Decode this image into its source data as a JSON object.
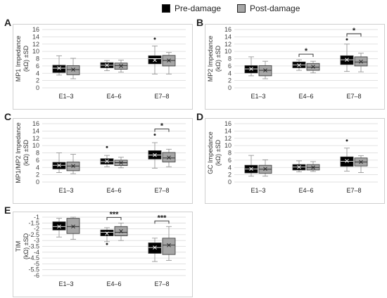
{
  "legend": {
    "items": [
      {
        "label": "Pre-damage",
        "color": "#000000"
      },
      {
        "label": "Post-damage",
        "color": "#a6a6a6"
      }
    ]
  },
  "chart_data": [
    {
      "panel": "A",
      "type": "box",
      "ylabel": "MP1 Impedance (kΩ) ±SD",
      "ylim": [
        0,
        16
      ],
      "yticks": [
        0,
        2,
        4,
        6,
        8,
        10,
        12,
        14,
        16
      ],
      "categories": [
        "E1–3",
        "E4–6",
        "E7–8"
      ],
      "series": [
        {
          "name": "Pre-damage",
          "boxes": [
            {
              "min": 3.5,
              "q1": 4.2,
              "median": 5.4,
              "q3": 6.2,
              "max": 8.8,
              "mean": 5.4
            },
            {
              "min": 4.7,
              "q1": 5.5,
              "median": 6.2,
              "q3": 6.9,
              "max": 7.5,
              "mean": 6.2
            },
            {
              "min": 3.8,
              "q1": 6.6,
              "median": 8.0,
              "q3": 8.8,
              "max": 11.5,
              "mean": 7.6
            }
          ]
        },
        {
          "name": "Post-damage",
          "boxes": [
            {
              "min": 2.5,
              "q1": 3.6,
              "median": 5.0,
              "q3": 6.1,
              "max": 8.1,
              "mean": 5.0
            },
            {
              "min": 4.3,
              "q1": 5.1,
              "median": 6.1,
              "q3": 6.8,
              "max": 7.6,
              "mean": 6.0
            },
            {
              "min": 3.8,
              "q1": 6.0,
              "median": 7.5,
              "q3": 8.9,
              "max": 9.7,
              "mean": 7.5
            }
          ]
        }
      ],
      "outliers": [
        {
          "series": "Pre-damage",
          "category": "E7–8",
          "value": 13.5
        }
      ],
      "significance": []
    },
    {
      "panel": "B",
      "type": "box",
      "ylabel": "MP2 Impedance (kΩ) ±SD",
      "ylim": [
        0,
        16
      ],
      "yticks": [
        0,
        2,
        4,
        6,
        8,
        10,
        12,
        14,
        16
      ],
      "categories": [
        "E1–3",
        "E4–6",
        "E7–8"
      ],
      "series": [
        {
          "name": "Pre-damage",
          "boxes": [
            {
              "min": 3.3,
              "q1": 4.1,
              "median": 5.2,
              "q3": 6.1,
              "max": 8.5,
              "mean": 5.2
            },
            {
              "min": 4.8,
              "q1": 5.5,
              "median": 6.3,
              "q3": 7.1,
              "max": 7.7,
              "mean": 6.2
            },
            {
              "min": 4.5,
              "q1": 6.4,
              "median": 7.7,
              "q3": 8.8,
              "max": 12.0,
              "mean": 7.7
            }
          ]
        },
        {
          "name": "Post-damage",
          "boxes": [
            {
              "min": 2.5,
              "q1": 3.3,
              "median": 4.8,
              "q3": 6.1,
              "max": 7.3,
              "mean": 4.8
            },
            {
              "min": 4.1,
              "q1": 4.8,
              "median": 5.7,
              "q3": 6.7,
              "max": 7.3,
              "mean": 5.8
            },
            {
              "min": 4.4,
              "q1": 6.0,
              "median": 7.1,
              "q3": 8.5,
              "max": 9.5,
              "mean": 7.2
            }
          ]
        }
      ],
      "outliers": [
        {
          "series": "Pre-damage",
          "category": "E7–8",
          "value": 13.3
        }
      ],
      "significance": [
        {
          "category": "E4–6",
          "label": "*"
        },
        {
          "category": "E7–8",
          "label": "*"
        }
      ]
    },
    {
      "panel": "C",
      "type": "box",
      "ylabel": "MP1/MP2 Impedance (kΩ) ±SD",
      "ylim": [
        0,
        16
      ],
      "yticks": [
        0,
        2,
        4,
        6,
        8,
        10,
        12,
        14,
        16
      ],
      "categories": [
        "E1–3",
        "E4–6",
        "E7–8"
      ],
      "series": [
        {
          "name": "Pre-damage",
          "boxes": [
            {
              "min": 2.6,
              "q1": 3.6,
              "median": 4.6,
              "q3": 5.4,
              "max": 8.0,
              "mean": 4.6
            },
            {
              "min": 4.2,
              "q1": 4.9,
              "median": 5.6,
              "q3": 6.4,
              "max": 7.3,
              "mean": 5.7
            },
            {
              "min": 3.8,
              "q1": 6.3,
              "median": 7.4,
              "q3": 8.6,
              "max": 10.8,
              "mean": 7.4
            }
          ]
        },
        {
          "name": "Post-damage",
          "boxes": [
            {
              "min": 2.3,
              "q1": 3.1,
              "median": 4.4,
              "q3": 5.5,
              "max": 7.6,
              "mean": 4.4
            },
            {
              "min": 3.9,
              "q1": 4.5,
              "median": 5.3,
              "q3": 6.0,
              "max": 6.8,
              "mean": 5.3
            },
            {
              "min": 4.2,
              "q1": 5.5,
              "median": 6.6,
              "q3": 8.1,
              "max": 9.0,
              "mean": 6.7
            }
          ]
        }
      ],
      "outliers": [
        {
          "series": "Pre-damage",
          "category": "E4–6",
          "value": 9.6
        },
        {
          "series": "Pre-damage",
          "category": "E7–8",
          "value": 13.0
        }
      ],
      "significance": [
        {
          "category": "E7–8",
          "label": "*"
        }
      ]
    },
    {
      "panel": "D",
      "type": "box",
      "ylabel": "GC Impedance (kΩ) ±SD",
      "ylim": [
        0,
        16
      ],
      "yticks": [
        0,
        2,
        4,
        6,
        8,
        10,
        12,
        14,
        16
      ],
      "categories": [
        "E1–3",
        "E4–6",
        "E7–8"
      ],
      "series": [
        {
          "name": "Pre-damage",
          "boxes": [
            {
              "min": 1.6,
              "q1": 2.5,
              "median": 3.6,
              "q3": 4.6,
              "max": 7.3,
              "mean": 3.6
            },
            {
              "min": 2.8,
              "q1": 3.3,
              "median": 4.1,
              "q3": 4.8,
              "max": 5.8,
              "mean": 4.1
            },
            {
              "min": 3.0,
              "q1": 4.3,
              "median": 5.7,
              "q3": 6.9,
              "max": 9.3,
              "mean": 5.8
            }
          ]
        },
        {
          "name": "Post-damage",
          "boxes": [
            {
              "min": 1.6,
              "q1": 2.4,
              "median": 3.5,
              "q3": 4.6,
              "max": 6.1,
              "mean": 3.6
            },
            {
              "min": 2.9,
              "q1": 3.3,
              "median": 4.0,
              "q3": 4.8,
              "max": 5.6,
              "mean": 4.0
            },
            {
              "min": 2.6,
              "q1": 4.4,
              "median": 5.5,
              "q3": 6.6,
              "max": 7.2,
              "mean": 5.5
            }
          ]
        }
      ],
      "outliers": [
        {
          "series": "Pre-damage",
          "category": "E7–8",
          "value": 11.4
        }
      ],
      "significance": []
    },
    {
      "panel": "E",
      "type": "box",
      "ylabel": "TIM (kΩ) ±SD",
      "ylim": [
        -6,
        -1
      ],
      "yticks": [
        -1,
        -1.5,
        -2,
        -2.5,
        -3,
        -3.5,
        -4,
        -4.5,
        -5,
        -5.5,
        -6
      ],
      "yticklabels": [
        "-1",
        "-1.5",
        "-2",
        "-2.5",
        "-3",
        "-3.5",
        "-4",
        "-4.5",
        "-5",
        "-5.5",
        "-6"
      ],
      "categories": [
        "E1–3",
        "E4–6",
        "E7–8"
      ],
      "series": [
        {
          "name": "Pre-damage",
          "boxes": [
            {
              "min": -2.7,
              "q1": -2.1,
              "median": -1.8,
              "q3": -1.4,
              "max": -1.1,
              "mean": -1.8
            },
            {
              "min": -3.1,
              "q1": -2.6,
              "median": -2.3,
              "q3": -2.1,
              "max": -1.9,
              "mean": -2.4
            },
            {
              "min": -4.8,
              "q1": -4.1,
              "median": -3.6,
              "q3": -3.2,
              "max": -2.8,
              "mean": -3.6
            }
          ]
        },
        {
          "name": "Post-damage",
          "boxes": [
            {
              "min": -2.9,
              "q1": -2.4,
              "median": -1.8,
              "q3": -1.1,
              "max": -1.0,
              "mean": -1.8
            },
            {
              "min": -3.0,
              "q1": -2.6,
              "median": -2.3,
              "q3": -1.8,
              "max": -1.5,
              "mean": -2.2
            },
            {
              "min": -4.7,
              "q1": -4.2,
              "median": -3.4,
              "q3": -2.8,
              "max": -1.8,
              "mean": -3.4
            }
          ]
        }
      ],
      "outliers": [
        {
          "series": "Pre-damage",
          "category": "E4–6",
          "value": -3.3
        }
      ],
      "significance": [
        {
          "category": "E4–6",
          "label": "***"
        },
        {
          "category": "E7–8",
          "label": "***"
        }
      ]
    }
  ]
}
